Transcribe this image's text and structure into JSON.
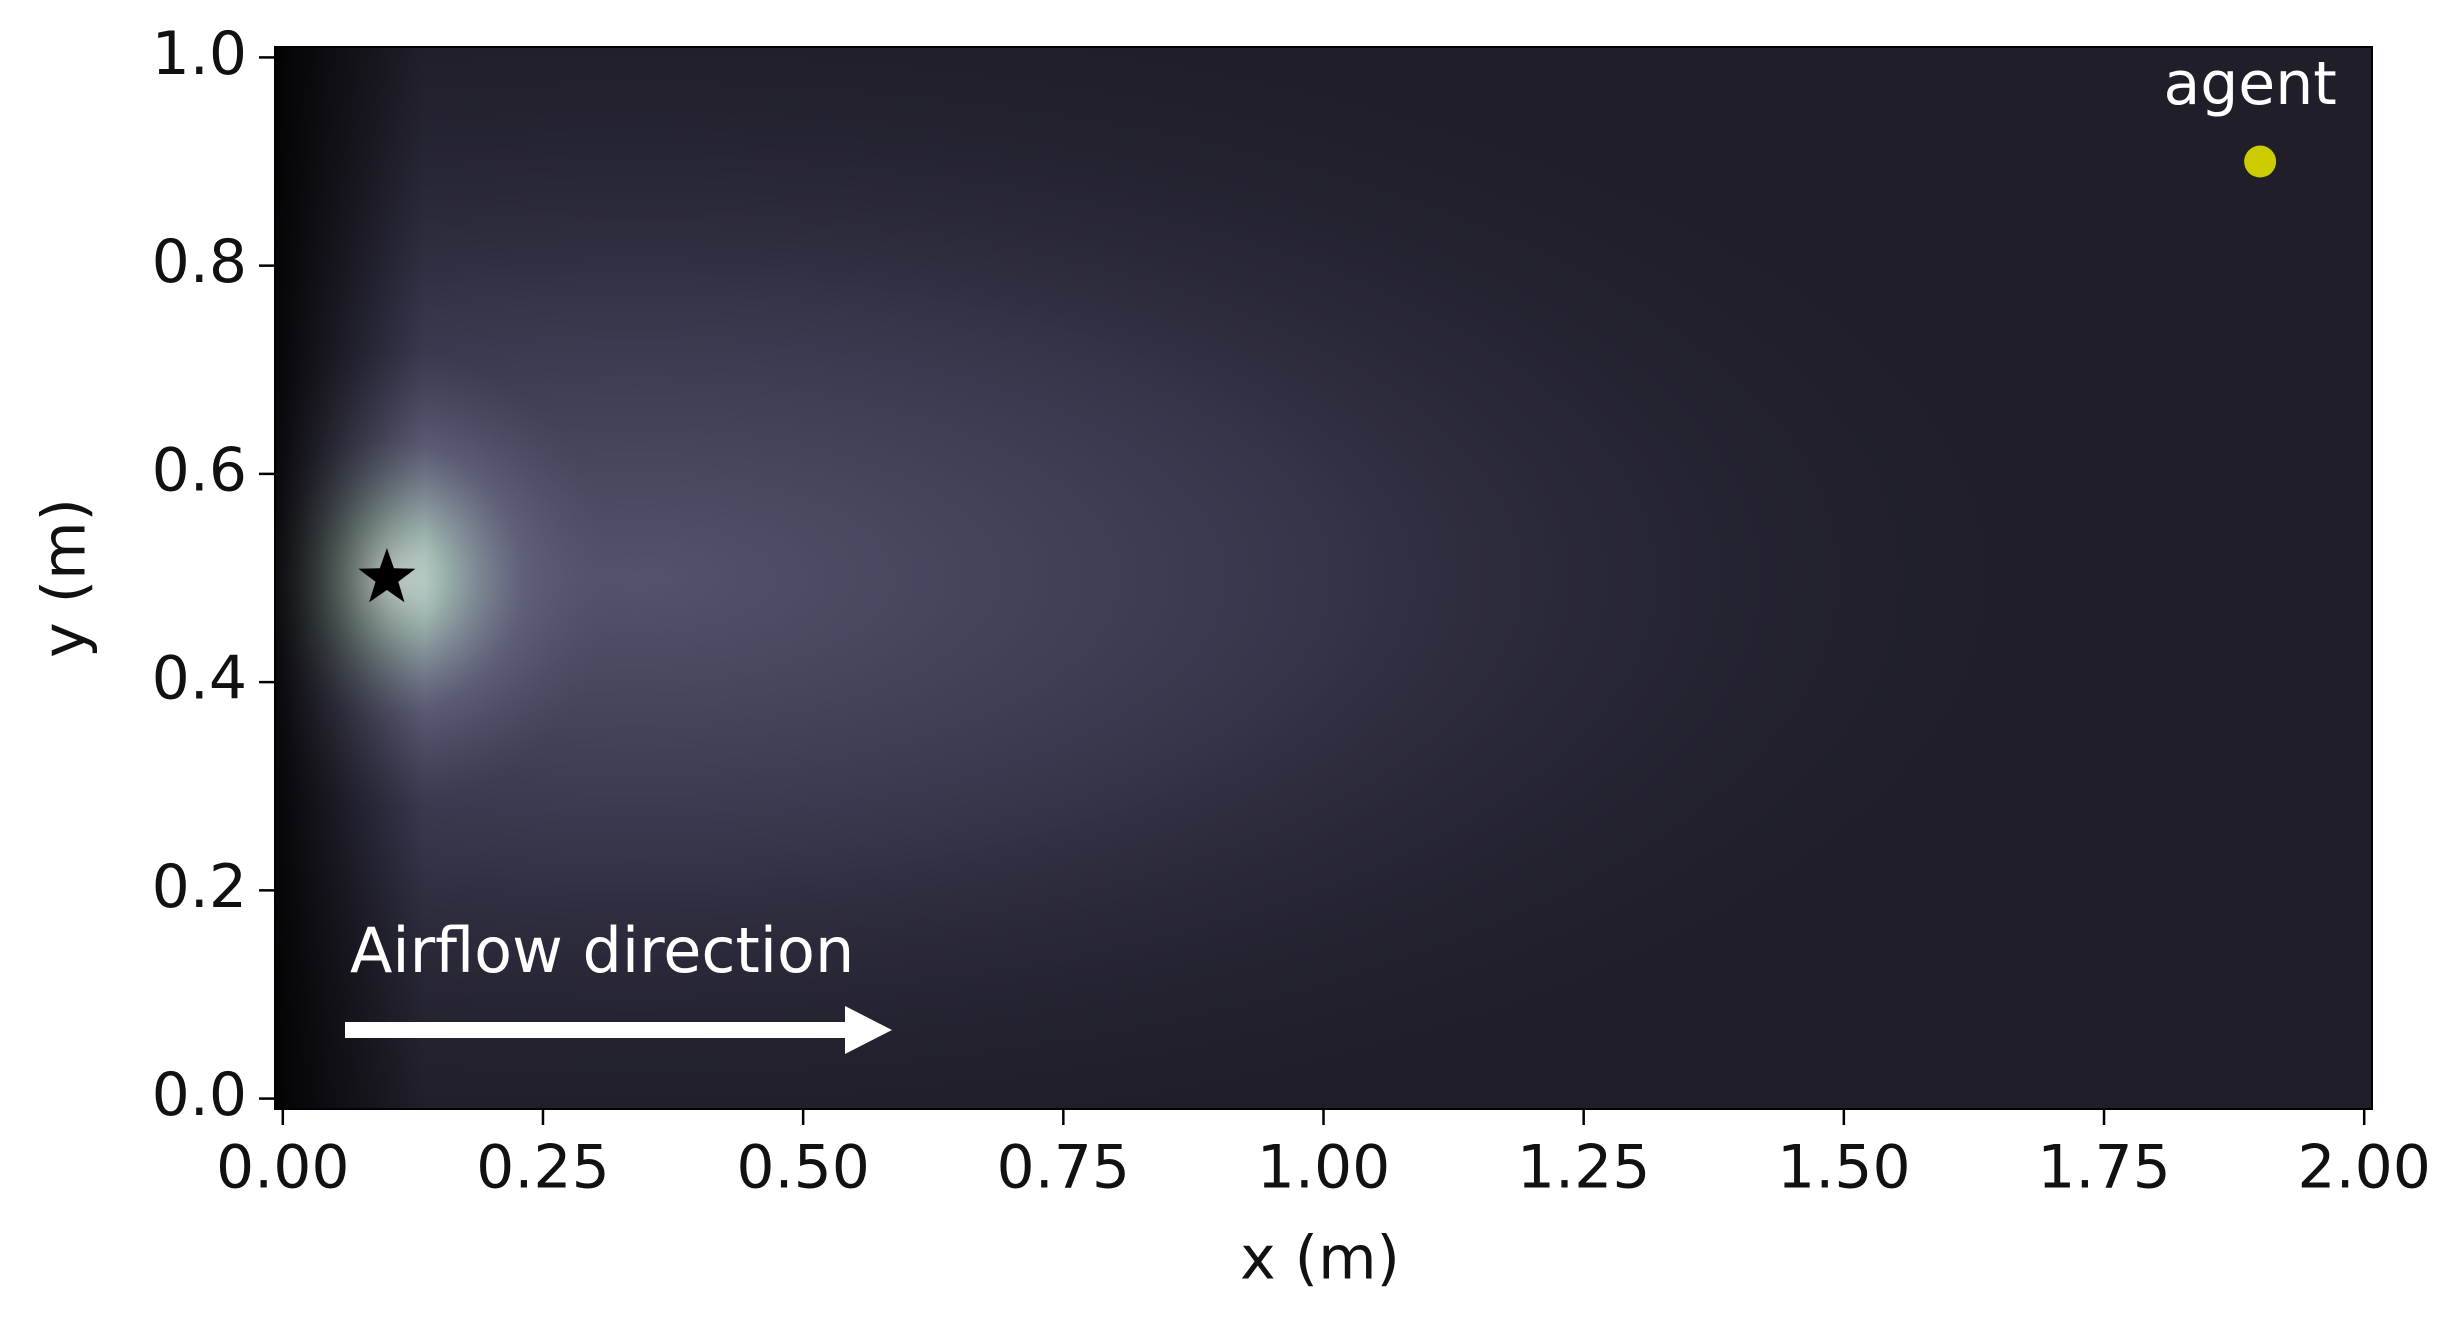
{
  "chart_data": {
    "type": "scatter",
    "xlabel": "x (m)",
    "ylabel": "y (m)",
    "xlim": [
      -0.0075,
      2.0075
    ],
    "ylim": [
      -0.01,
      1.01
    ],
    "xticks": [
      {
        "value": 0,
        "label": "0.00"
      },
      {
        "value": 0.25,
        "label": "0.25"
      },
      {
        "value": 0.5,
        "label": "0.50"
      },
      {
        "value": 0.75,
        "label": "0.75"
      },
      {
        "value": 1,
        "label": "1.00"
      },
      {
        "value": 1.25,
        "label": "1.25"
      },
      {
        "value": 1.5,
        "label": "1.50"
      },
      {
        "value": 1.75,
        "label": "1.75"
      },
      {
        "value": 2,
        "label": "2.00"
      }
    ],
    "yticks": [
      {
        "value": 0,
        "label": "0.0"
      },
      {
        "value": 0.2,
        "label": "0.2"
      },
      {
        "value": 0.4,
        "label": "0.4"
      },
      {
        "value": 0.6,
        "label": "0.6"
      },
      {
        "value": 0.8,
        "label": "0.8"
      },
      {
        "value": 1,
        "label": "1.0"
      }
    ],
    "series": [
      {
        "name": "agent",
        "color": "#cccc00",
        "marker": "circle",
        "x": [
          1.9
        ],
        "values": [
          0.9
        ]
      },
      {
        "color": "#000000",
        "marker": "star",
        "x": [
          0.1
        ],
        "values": [
          0.5
        ]
      }
    ],
    "annotations": [
      {
        "text": "Airflow direction"
      }
    ]
  }
}
